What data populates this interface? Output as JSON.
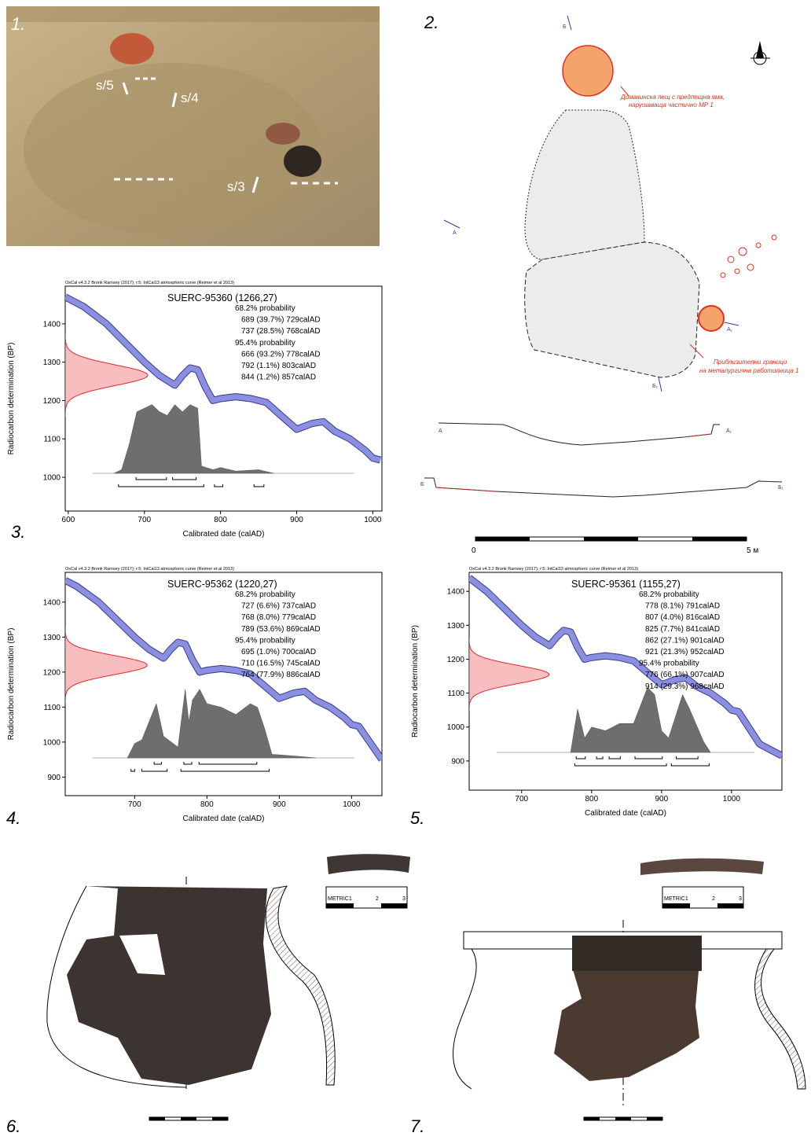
{
  "panel_labels": [
    "1.",
    "2.",
    "3.",
    "4.",
    "5.",
    "6.",
    "7."
  ],
  "photo": {
    "labels": [
      "s/5",
      "s/4",
      "s/3"
    ]
  },
  "plan": {
    "section_labels": [
      "Б",
      "А",
      "А₁",
      "Б₁"
    ],
    "oven_note": [
      "Домакинска пещ с предпещна яма,",
      "нарушаваща частично МР 1"
    ],
    "workshop_note": [
      "Приблизителни граници",
      "на металургична работилница 1"
    ],
    "scale": [
      "0",
      "5 м"
    ]
  },
  "ruler": [
    "METRIC1",
    "2",
    "3"
  ],
  "chart_data": [
    {
      "type": "oxcal",
      "header": "OxCal v4.3.2 Bronk Ramsey (2017); r:5; IntCal13 atmospheric curve (Reimer et al 2013)",
      "title": "SUERC-95360 (1266,27)",
      "x_label": "Calibrated date (calAD)",
      "y_label": "Radiocarbon determination (BP)",
      "xlim": [
        596,
        1012
      ],
      "ylim": [
        912,
        1498
      ],
      "xticks": [
        600,
        700,
        800,
        900,
        1000
      ],
      "yticks": [
        1000,
        1100,
        1200,
        1300,
        1400
      ],
      "measurement": {
        "value": 1266,
        "error": 27,
        "color": "#e8262c"
      },
      "probability_68": "68.2% probability",
      "ranges_68": [
        {
          "label": "689 (39.7%) 729calAD",
          "from": 689,
          "to": 729
        },
        {
          "label": "737 (28.5%) 768calAD",
          "from": 737,
          "to": 768
        }
      ],
      "probability_95": "95.4% probability",
      "ranges_95": [
        {
          "label": "666 (93.2%) 778calAD",
          "from": 666,
          "to": 778
        },
        {
          "label": "792 (1.1%) 803calAD",
          "from": 792,
          "to": 803
        },
        {
          "label": "844 (1.2%) 857calAD",
          "from": 844,
          "to": 857
        }
      ],
      "curve": {
        "color": "#8a8fe0",
        "x": [
          596,
          620,
          650,
          680,
          700,
          720,
          740,
          750,
          760,
          770,
          780,
          790,
          800,
          820,
          840,
          860,
          880,
          900,
          920,
          935,
          950,
          970,
          990,
          1000,
          1010
        ],
        "values": [
          1470,
          1445,
          1400,
          1340,
          1300,
          1265,
          1240,
          1265,
          1285,
          1280,
          1235,
          1200,
          1205,
          1210,
          1205,
          1195,
          1160,
          1125,
          1140,
          1145,
          1120,
          1100,
          1070,
          1050,
          1045
        ]
      },
      "posterior": {
        "color": "#6e6e6e",
        "x": [
          660,
          670,
          680,
          690,
          700,
          710,
          720,
          730,
          740,
          750,
          760,
          770,
          775,
          790,
          800,
          820,
          850,
          870
        ],
        "values": [
          0,
          0.05,
          0.4,
          0.85,
          0.9,
          0.95,
          0.85,
          0.8,
          0.95,
          0.85,
          0.95,
          0.9,
          0.1,
          0.05,
          0.08,
          0.03,
          0.05,
          0
        ]
      }
    },
    {
      "type": "oxcal",
      "header": "OxCal v4.3.2 Bronk Ramsey (2017); r:5; IntCal13 atmospheric curve (Reimer et al 2013)",
      "title": "SUERC-95362 (1220,27)",
      "x_label": "Calibrated date (calAD)",
      "y_label": "Radiocarbon determination (BP)",
      "xlim": [
        604,
        1042
      ],
      "ylim": [
        847,
        1485
      ],
      "xticks": [
        700,
        800,
        900,
        1000
      ],
      "yticks": [
        900,
        1000,
        1100,
        1200,
        1300,
        1400
      ],
      "measurement": {
        "value": 1220,
        "error": 27,
        "color": "#e8262c"
      },
      "probability_68": "68.2% probability",
      "ranges_68": [
        {
          "label": "727 (6.6%) 737calAD",
          "from": 727,
          "to": 737
        },
        {
          "label": "768 (8.0%) 779calAD",
          "from": 768,
          "to": 779
        },
        {
          "label": "789 (53.6%) 869calAD",
          "from": 789,
          "to": 869
        }
      ],
      "probability_95": "95.4% probability",
      "ranges_95": [
        {
          "label": "695 (1.0%) 700calAD",
          "from": 695,
          "to": 700
        },
        {
          "label": "710 (16.5%) 745calAD",
          "from": 710,
          "to": 745
        },
        {
          "label": "764 (77.9%) 886calAD",
          "from": 764,
          "to": 886
        }
      ],
      "curve": {
        "color": "#8a8fe0",
        "x": [
          604,
          620,
          650,
          680,
          700,
          720,
          740,
          750,
          760,
          770,
          780,
          790,
          800,
          820,
          840,
          860,
          880,
          900,
          920,
          935,
          950,
          970,
          990,
          1000,
          1010,
          1042
        ],
        "values": [
          1462,
          1445,
          1400,
          1340,
          1300,
          1265,
          1240,
          1265,
          1285,
          1280,
          1235,
          1200,
          1205,
          1210,
          1205,
          1195,
          1160,
          1125,
          1140,
          1145,
          1120,
          1100,
          1070,
          1050,
          1045,
          950
        ]
      },
      "posterior": {
        "color": "#6e6e6e",
        "x": [
          690,
          700,
          710,
          720,
          730,
          740,
          760,
          770,
          775,
          780,
          790,
          800,
          820,
          840,
          860,
          870,
          880,
          890,
          930,
          950
        ],
        "values": [
          0,
          0.2,
          0.25,
          0.5,
          0.75,
          0.3,
          0.15,
          0.95,
          0.5,
          0.8,
          0.95,
          0.75,
          0.7,
          0.6,
          0.75,
          0.7,
          0.4,
          0.05,
          0.02,
          0
        ]
      }
    },
    {
      "type": "oxcal",
      "header": "OxCal v4.3.2 Bronk Ramsey (2017); r:5; IntCal13 atmospheric curve (Reimer et al 2013)",
      "title": "SUERC-95361 (1155,27)",
      "x_label": "Calibrated date (calAD)",
      "y_label": "Radiocarbon determination (BP)",
      "xlim": [
        625,
        1072
      ],
      "ylim": [
        814,
        1456
      ],
      "xticks": [
        700,
        800,
        900,
        1000
      ],
      "yticks": [
        900,
        1000,
        1100,
        1200,
        1300,
        1400
      ],
      "measurement": {
        "value": 1155,
        "error": 27,
        "color": "#e8262c"
      },
      "probability_68": "68.2% probability",
      "ranges_68": [
        {
          "label": "778 (8.1%) 791calAD",
          "from": 778,
          "to": 791
        },
        {
          "label": "807 (4.0%) 816calAD",
          "from": 807,
          "to": 816
        },
        {
          "label": "825 (7.7%) 841calAD",
          "from": 825,
          "to": 841
        },
        {
          "label": "862 (27.1%) 901calAD",
          "from": 862,
          "to": 901
        },
        {
          "label": "921 (21.3%) 952calAD",
          "from": 921,
          "to": 952
        }
      ],
      "probability_95": "95.4% probability",
      "ranges_95": [
        {
          "label": "776 (66.1%) 907calAD",
          "from": 776,
          "to": 907
        },
        {
          "label": "914 (29.3%) 968calAD",
          "from": 914,
          "to": 968
        }
      ],
      "curve": {
        "color": "#8a8fe0",
        "x": [
          625,
          650,
          680,
          700,
          720,
          740,
          750,
          760,
          770,
          780,
          790,
          800,
          820,
          840,
          860,
          880,
          900,
          920,
          935,
          950,
          970,
          990,
          1000,
          1010,
          1040,
          1072
        ],
        "values": [
          1440,
          1400,
          1340,
          1300,
          1265,
          1240,
          1265,
          1285,
          1280,
          1235,
          1200,
          1205,
          1210,
          1205,
          1195,
          1160,
          1125,
          1140,
          1145,
          1120,
          1100,
          1070,
          1050,
          1045,
          950,
          915
        ]
      },
      "posterior": {
        "color": "#6e6e6e",
        "x": [
          770,
          780,
          790,
          800,
          820,
          840,
          860,
          880,
          890,
          900,
          910,
          930,
          940,
          960,
          970
        ],
        "values": [
          0,
          0.6,
          0.2,
          0.35,
          0.3,
          0.4,
          0.4,
          0.9,
          0.8,
          0.3,
          0.2,
          0.8,
          0.6,
          0.15,
          0
        ]
      }
    }
  ]
}
